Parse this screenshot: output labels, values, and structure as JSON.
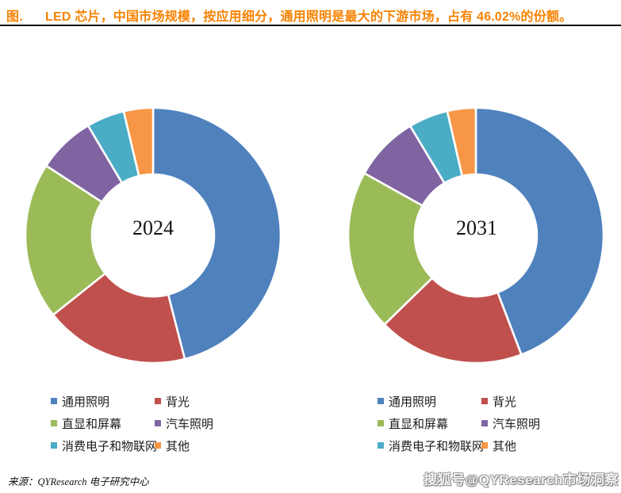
{
  "header": {
    "prefix": "图.",
    "title": "LED 芯片，中国市场规模，按应用细分，通用照明是最大的下游市场，占有 46.02%的份额。",
    "accent_color": "#F78200",
    "highlight_share": "46.02%"
  },
  "chart_data": [
    {
      "type": "pie",
      "subtype": "donut",
      "center_label": "2024",
      "labels": [
        "通用照明",
        "背光",
        "直显和屏幕",
        "汽车照明",
        "消费电子和物联网",
        "其他"
      ],
      "values": [
        46.02,
        18.3,
        19.9,
        7.3,
        4.8,
        3.7
      ],
      "unit": "%",
      "colors": [
        "#4F81BD",
        "#C0504D",
        "#9BBB59",
        "#8064A2",
        "#4BACC6",
        "#F79646"
      ],
      "start_angle_deg": 0,
      "direction": "clockwise",
      "legend_position": "bottom",
      "legend_columns": 2,
      "slice_border_color": "#ffffff"
    },
    {
      "type": "pie",
      "subtype": "donut",
      "center_label": "2031",
      "labels": [
        "通用照明",
        "背光",
        "直显和屏幕",
        "汽车照明",
        "消费电子和物联网",
        "其他"
      ],
      "values": [
        44.2,
        18.5,
        20.4,
        8.3,
        5.0,
        3.6
      ],
      "unit": "%",
      "colors": [
        "#4F81BD",
        "#C0504D",
        "#9BBB59",
        "#8064A2",
        "#4BACC6",
        "#F79646"
      ],
      "start_angle_deg": 0,
      "direction": "clockwise",
      "legend_position": "bottom",
      "legend_columns": 2,
      "slice_border_color": "#ffffff"
    }
  ],
  "footer": {
    "source": "来源：QYResearch 电子研究中心",
    "watermark": "搜狐号@QYResearch市场洞察"
  }
}
